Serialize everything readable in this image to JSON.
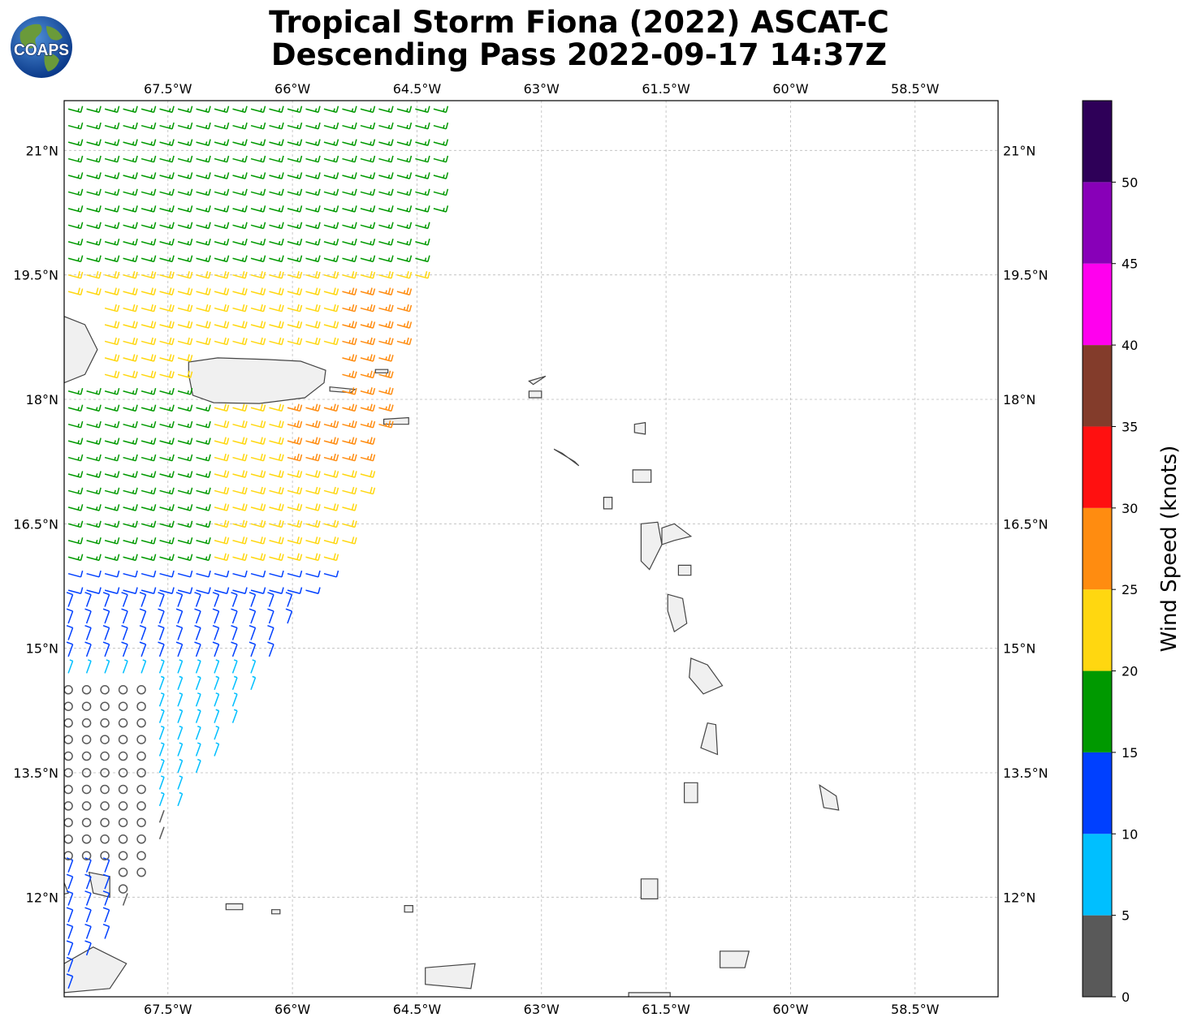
{
  "title": {
    "line1": "Tropical Storm Fiona (2022) ASCAT-C",
    "line2": "Descending Pass 2022-09-17 14:37Z"
  },
  "logo": {
    "text": "COAPS",
    "icon": "globe-icon"
  },
  "map": {
    "lon_range": [
      -68.75,
      -57.5
    ],
    "lat_range": [
      10.8,
      21.6
    ],
    "gridlines": true,
    "lon_ticks": [
      "67.5°W",
      "66°W",
      "64.5°W",
      "63°W",
      "61.5°W",
      "60°W",
      "58.5°W"
    ],
    "lon_tick_values": [
      -67.5,
      -66,
      -64.5,
      -63,
      -61.5,
      -60,
      -58.5
    ],
    "lat_ticks": [
      "21°N",
      "19.5°N",
      "18°N",
      "16.5°N",
      "15°N",
      "13.5°N",
      "12°N"
    ],
    "lat_tick_values": [
      21,
      19.5,
      18,
      16.5,
      15,
      13.5,
      12
    ],
    "coastline_color": "#444444",
    "land_fill": "#f0f0f0"
  },
  "colorbar": {
    "title": "Wind Speed (knots)",
    "levels": [
      0,
      5,
      10,
      15,
      20,
      25,
      30,
      35,
      40,
      45,
      50,
      55
    ],
    "tick_labels": [
      "0",
      "5",
      "10",
      "15",
      "20",
      "25",
      "30",
      "35",
      "40",
      "45",
      "50"
    ],
    "colors": [
      "#595959",
      "#00bfff",
      "#0040ff",
      "#009900",
      "#ffd710",
      "#ff8c10",
      "#ff1010",
      "#833c2b",
      "#ff00ee",
      "#8800b8",
      "#2e0058"
    ]
  }
}
